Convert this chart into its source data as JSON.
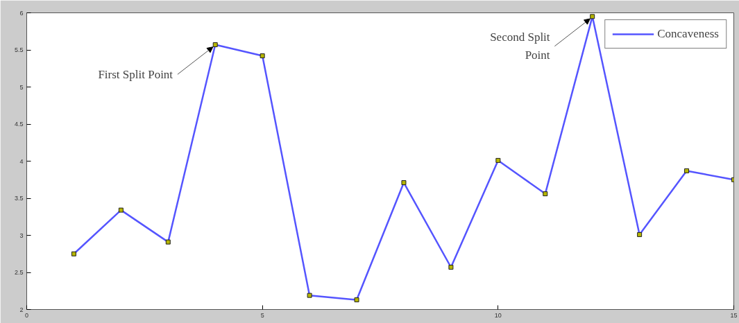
{
  "chart_data": {
    "type": "line",
    "x": [
      1,
      2,
      3,
      4,
      5,
      6,
      7,
      8,
      9,
      10,
      11,
      12,
      13,
      14,
      15
    ],
    "series": [
      {
        "name": "Concaveness",
        "color": "#5555ff",
        "values": [
          2.75,
          3.34,
          2.91,
          5.57,
          5.42,
          2.19,
          2.13,
          3.71,
          2.57,
          4.01,
          3.56,
          5.95,
          3.01,
          3.87,
          3.75
        ]
      }
    ],
    "xlim": [
      0,
      15
    ],
    "xticks": [
      0,
      5,
      10,
      15
    ],
    "ylim": [
      2,
      6
    ],
    "yticks": [
      2,
      2.5,
      3,
      3.5,
      4,
      4.5,
      5,
      5.5,
      6
    ],
    "annotations": [
      {
        "text": "First Split Point",
        "x": 4,
        "y": 5.57
      },
      {
        "text": "Second Split\nPoint",
        "x": 12,
        "y": 5.95
      }
    ],
    "marker": "square",
    "line_style": "solid",
    "grid": false,
    "legend": "top right"
  }
}
